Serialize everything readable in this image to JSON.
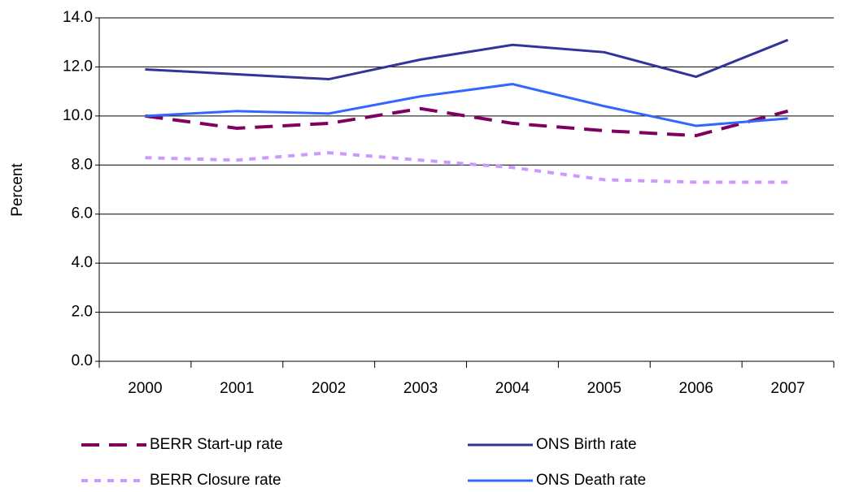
{
  "chart_data": {
    "type": "line",
    "y_label": "Percent",
    "categories": [
      "2000",
      "2001",
      "2002",
      "2003",
      "2004",
      "2005",
      "2006",
      "2007"
    ],
    "series": [
      {
        "name": "BERR Start-up rate",
        "color": "#800060",
        "dash": "dashed",
        "values": [
          10.0,
          9.5,
          9.7,
          10.3,
          9.7,
          9.4,
          9.2,
          10.2
        ]
      },
      {
        "name": "ONS Birth rate",
        "color": "#333399",
        "dash": "solid",
        "values": [
          11.9,
          11.7,
          11.5,
          12.3,
          12.9,
          12.6,
          11.6,
          13.1
        ]
      },
      {
        "name": "BERR Closure rate",
        "color": "#cc99ff",
        "dash": "dotted",
        "values": [
          8.3,
          8.2,
          8.5,
          8.2,
          7.9,
          7.4,
          7.3,
          7.3
        ]
      },
      {
        "name": "ONS Death rate",
        "color": "#3366ff",
        "dash": "solid",
        "values": [
          10.0,
          10.2,
          10.1,
          10.8,
          11.3,
          10.4,
          9.6,
          9.9
        ]
      }
    ],
    "ylim": [
      0,
      14
    ],
    "yticks": [
      {
        "value": 0,
        "label": "0.0"
      },
      {
        "value": 2,
        "label": "2.0"
      },
      {
        "value": 4,
        "label": "4.0"
      },
      {
        "value": 6,
        "label": "6.0"
      },
      {
        "value": 8,
        "label": "8.0"
      },
      {
        "value": 10,
        "label": "10.0"
      },
      {
        "value": 12,
        "label": "12.0"
      },
      {
        "value": 14,
        "label": "14.0"
      }
    ],
    "grid": true,
    "legend": "bottom"
  }
}
